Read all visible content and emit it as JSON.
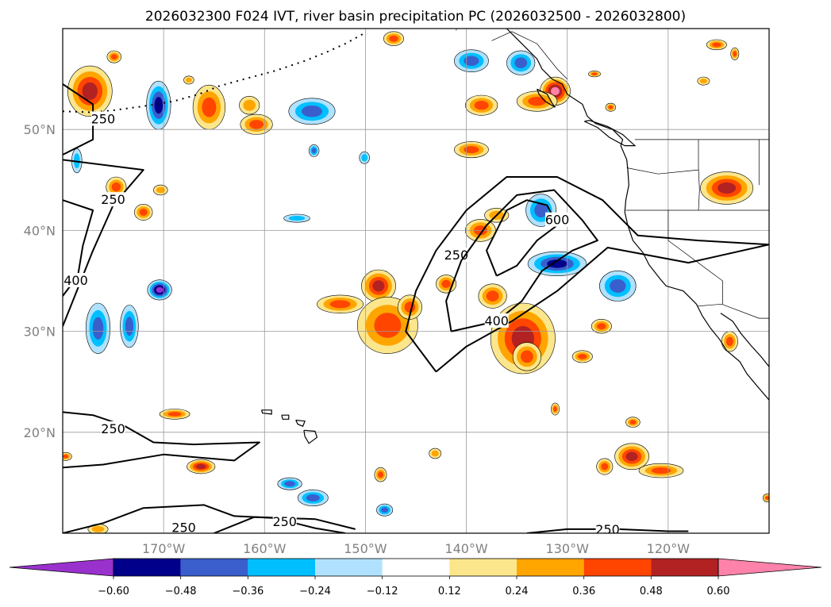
{
  "chart_data": {
    "type": "map-contour",
    "title": "2026032300 F024 IVT, river basin precipitation PC (2026032500 - 2026032800)",
    "extent": {
      "lon_min": -180,
      "lon_max": -110,
      "lat_min": 10,
      "lat_max": 60
    },
    "lon_ticks": [
      {
        "lon": -170,
        "label": "170°W"
      },
      {
        "lon": -160,
        "label": "160°W"
      },
      {
        "lon": -150,
        "label": "150°W"
      },
      {
        "lon": -140,
        "label": "140°W"
      },
      {
        "lon": -130,
        "label": "130°W"
      },
      {
        "lon": -120,
        "label": "120°W"
      }
    ],
    "lat_ticks": [
      {
        "lat": 50,
        "label": "50°N"
      },
      {
        "lat": 40,
        "label": "40°N"
      },
      {
        "lat": 30,
        "label": "30°N"
      },
      {
        "lat": 20,
        "label": "20°N"
      }
    ],
    "gridlines": true,
    "colorbar": {
      "extend": "both",
      "levels": [
        -0.6,
        -0.48,
        -0.36,
        -0.24,
        -0.12,
        0.12,
        0.24,
        0.36,
        0.48,
        0.6
      ],
      "tick_labels": [
        "−0.60",
        "−0.48",
        "−0.36",
        "−0.24",
        "−0.12",
        "0.12",
        "0.24",
        "0.36",
        "0.48",
        "0.60"
      ],
      "colors": [
        "#9932cc",
        "#00008b",
        "#3a5fcd",
        "#00bfff",
        "#b0e2ff",
        "#ffffff",
        "#fce68c",
        "#ffa500",
        "#ff4500",
        "#b22222",
        "#ff82ab"
      ]
    },
    "ivt_contour_levels": [
      250,
      400,
      600
    ],
    "ivt_contours": [
      {
        "level": 250,
        "label": "250",
        "label_lon": -176,
        "label_lat": 51,
        "points": [
          [
            -180,
            54.5
          ],
          [
            -177,
            52.5
          ],
          [
            -177,
            49
          ],
          [
            -180,
            47.5
          ]
        ]
      },
      {
        "level": 250,
        "label": "250",
        "label_lon": -175,
        "label_lat": 43,
        "points": [
          [
            -180,
            30.5
          ],
          [
            -177,
            38
          ],
          [
            -175,
            42.5
          ],
          [
            -172,
            46
          ],
          [
            -180,
            47
          ]
        ]
      },
      {
        "level": 400,
        "label": "400",
        "label_lon": -178.7,
        "label_lat": 35,
        "points": [
          [
            -180,
            33.5
          ],
          [
            -178.5,
            35.5
          ],
          [
            -178,
            38.5
          ],
          [
            -177,
            42
          ],
          [
            -180,
            43
          ]
        ]
      },
      {
        "level": 250,
        "label": "250",
        "label_lon": -141,
        "label_lat": 37.5,
        "points": [
          [
            -143,
            26
          ],
          [
            -146,
            30
          ],
          [
            -145,
            34
          ],
          [
            -143,
            38
          ],
          [
            -140,
            42
          ],
          [
            -136,
            45.3
          ],
          [
            -131,
            45.3
          ],
          [
            -126.5,
            43
          ],
          [
            -123,
            39.5
          ],
          [
            -117,
            39
          ],
          [
            -110,
            38.6
          ],
          [
            -118,
            36.8
          ],
          [
            -126,
            38.3
          ],
          [
            -131,
            34
          ],
          [
            -135.5,
            31
          ],
          [
            -140,
            28.5
          ],
          [
            -143,
            26
          ]
        ]
      },
      {
        "level": 400,
        "label": "400",
        "label_lon": -137,
        "label_lat": 31,
        "points": [
          [
            -141.5,
            30
          ],
          [
            -142,
            33
          ],
          [
            -140.5,
            37
          ],
          [
            -138,
            40.5
          ],
          [
            -135,
            43.5
          ],
          [
            -131.3,
            44
          ],
          [
            -128.5,
            41
          ],
          [
            -127,
            39
          ],
          [
            -129.5,
            38
          ],
          [
            -132.5,
            36
          ],
          [
            -134.5,
            33
          ],
          [
            -137,
            31
          ],
          [
            -141.5,
            30
          ]
        ]
      },
      {
        "level": 600,
        "label": "600",
        "label_lon": -131,
        "label_lat": 41,
        "points": [
          [
            -137,
            35.5
          ],
          [
            -138,
            38
          ],
          [
            -136,
            42
          ],
          [
            -134,
            43
          ],
          [
            -132,
            42.5
          ],
          [
            -131,
            40.5
          ],
          [
            -133,
            39
          ],
          [
            -135,
            36.5
          ],
          [
            -137,
            35.5
          ]
        ]
      },
      {
        "level": 250,
        "label": "250",
        "label_lon": -175,
        "label_lat": 20.3,
        "points": [
          [
            -180,
            22
          ],
          [
            -177,
            21.7
          ],
          [
            -174,
            20.7
          ],
          [
            -171,
            19
          ],
          [
            -167,
            18.8
          ],
          [
            -160.5,
            19
          ],
          [
            -163,
            17.2
          ],
          [
            -170,
            17.8
          ],
          [
            -176,
            16.8
          ],
          [
            -180,
            16.5
          ]
        ]
      },
      {
        "level": 250,
        "label": "250",
        "label_lon": -168,
        "label_lat": 10.5,
        "points": [
          [
            -180,
            10
          ],
          [
            -176,
            11
          ],
          [
            -172,
            12.5
          ],
          [
            -166,
            12.8
          ],
          [
            -163,
            11.7
          ],
          [
            -159,
            11.5
          ],
          [
            -155,
            10.5
          ],
          [
            -152,
            10
          ]
        ]
      },
      {
        "level": 250,
        "label": "250",
        "label_lon": -158,
        "label_lat": 11.1,
        "points": [
          [
            -165,
            10
          ],
          [
            -161,
            11.6
          ],
          [
            -155,
            11.4
          ],
          [
            -151,
            10.4
          ]
        ]
      },
      {
        "level": 250,
        "label": "250",
        "label_lon": -126,
        "label_lat": 10.3,
        "points": [
          [
            -134,
            10
          ],
          [
            -130,
            10.4
          ],
          [
            -125,
            10.4
          ],
          [
            -120,
            10.2
          ],
          [
            -118,
            10.2
          ]
        ]
      }
    ],
    "pc_regions": [
      {
        "lon": -177.3,
        "lat": 53.8,
        "rx": 2.2,
        "ry": 2.5,
        "value": 0.5
      },
      {
        "lon": -170.5,
        "lat": 52.4,
        "rx": 1.2,
        "ry": 2.4,
        "value": -0.55
      },
      {
        "lon": -165.5,
        "lat": 52.2,
        "rx": 1.6,
        "ry": 2.2,
        "value": 0.4
      },
      {
        "lon": -161.5,
        "lat": 52.4,
        "rx": 1.0,
        "ry": 0.9,
        "value": 0.34
      },
      {
        "lon": -160.8,
        "lat": 50.5,
        "rx": 1.6,
        "ry": 1.0,
        "value": 0.42
      },
      {
        "lon": -155.3,
        "lat": 51.8,
        "rx": 2.3,
        "ry": 1.3,
        "value": -0.45
      },
      {
        "lon": -147.2,
        "lat": 59.0,
        "rx": 1.0,
        "ry": 0.7,
        "value": 0.38
      },
      {
        "lon": -139.5,
        "lat": 56.8,
        "rx": 1.7,
        "ry": 1.1,
        "value": -0.4
      },
      {
        "lon": -134.6,
        "lat": 56.6,
        "rx": 1.4,
        "ry": 1.2,
        "value": -0.36
      },
      {
        "lon": -131.2,
        "lat": 53.8,
        "rx": 1.5,
        "ry": 1.4,
        "value": 0.62
      },
      {
        "lon": -133.0,
        "lat": 52.8,
        "rx": 2.0,
        "ry": 1.0,
        "value": 0.4
      },
      {
        "lon": -138.5,
        "lat": 52.4,
        "rx": 1.6,
        "ry": 1.0,
        "value": 0.42
      },
      {
        "lon": -139.5,
        "lat": 48.0,
        "rx": 1.7,
        "ry": 0.8,
        "value": 0.42
      },
      {
        "lon": -114.2,
        "lat": 44.2,
        "rx": 2.6,
        "ry": 1.6,
        "value": 0.52
      },
      {
        "lon": -174.7,
        "lat": 44.3,
        "rx": 1.0,
        "ry": 1.0,
        "value": 0.4
      },
      {
        "lon": -172.0,
        "lat": 41.8,
        "rx": 0.9,
        "ry": 0.8,
        "value": 0.38
      },
      {
        "lon": -138.6,
        "lat": 40.0,
        "rx": 1.5,
        "ry": 1.1,
        "value": 0.42
      },
      {
        "lon": -137.0,
        "lat": 41.5,
        "rx": 1.2,
        "ry": 0.7,
        "value": 0.34
      },
      {
        "lon": -148.7,
        "lat": 34.5,
        "rx": 1.7,
        "ry": 1.6,
        "value": 0.48
      },
      {
        "lon": -152.5,
        "lat": 32.7,
        "rx": 2.3,
        "ry": 0.9,
        "value": 0.42
      },
      {
        "lon": -147.8,
        "lat": 30.6,
        "rx": 3.0,
        "ry": 2.8,
        "value": 0.42
      },
      {
        "lon": -145.6,
        "lat": 32.4,
        "rx": 1.2,
        "ry": 1.2,
        "value": 0.4
      },
      {
        "lon": -142.0,
        "lat": 34.7,
        "rx": 1.0,
        "ry": 0.9,
        "value": 0.36
      },
      {
        "lon": -134.4,
        "lat": 29.3,
        "rx": 3.2,
        "ry": 3.5,
        "value": 0.56
      },
      {
        "lon": -134.0,
        "lat": 27.5,
        "rx": 1.4,
        "ry": 1.4,
        "value": 0.44
      },
      {
        "lon": -137.4,
        "lat": 33.5,
        "rx": 1.4,
        "ry": 1.2,
        "value": 0.4
      },
      {
        "lon": -128.5,
        "lat": 27.5,
        "rx": 1.0,
        "ry": 0.6,
        "value": 0.36
      },
      {
        "lon": -126.6,
        "lat": 30.5,
        "rx": 1.0,
        "ry": 0.7,
        "value": 0.36
      },
      {
        "lon": -132.6,
        "lat": 42.0,
        "rx": 1.5,
        "ry": 1.6,
        "value": -0.46
      },
      {
        "lon": -131.0,
        "lat": 36.7,
        "rx": 2.9,
        "ry": 1.2,
        "value": -0.55
      },
      {
        "lon": -125.0,
        "lat": 34.5,
        "rx": 1.8,
        "ry": 1.5,
        "value": -0.44
      },
      {
        "lon": -170.4,
        "lat": 34.1,
        "rx": 1.2,
        "ry": 1.0,
        "value": -0.6
      },
      {
        "lon": -176.5,
        "lat": 30.3,
        "rx": 1.2,
        "ry": 2.5,
        "value": -0.45
      },
      {
        "lon": -173.4,
        "lat": 30.5,
        "rx": 0.9,
        "ry": 2.1,
        "value": -0.38
      },
      {
        "lon": -156.8,
        "lat": 41.2,
        "rx": 1.3,
        "ry": 0.4,
        "value": -0.3
      },
      {
        "lon": -168.9,
        "lat": 21.8,
        "rx": 1.5,
        "ry": 0.5,
        "value": 0.42
      },
      {
        "lon": -166.3,
        "lat": 16.6,
        "rx": 1.4,
        "ry": 0.7,
        "value": 0.5
      },
      {
        "lon": -157.5,
        "lat": 14.9,
        "rx": 1.2,
        "ry": 0.6,
        "value": -0.42
      },
      {
        "lon": -155.2,
        "lat": 13.5,
        "rx": 1.5,
        "ry": 0.8,
        "value": -0.4
      },
      {
        "lon": -148.5,
        "lat": 15.8,
        "rx": 0.6,
        "ry": 0.7,
        "value": 0.4
      },
      {
        "lon": -148.1,
        "lat": 12.3,
        "rx": 0.8,
        "ry": 0.6,
        "value": -0.38
      },
      {
        "lon": -143.1,
        "lat": 17.9,
        "rx": 0.6,
        "ry": 0.5,
        "value": 0.3
      },
      {
        "lon": -131.2,
        "lat": 22.3,
        "rx": 0.4,
        "ry": 0.6,
        "value": 0.38
      },
      {
        "lon": -123.6,
        "lat": 17.6,
        "rx": 1.7,
        "ry": 1.3,
        "value": 0.5
      },
      {
        "lon": -120.7,
        "lat": 16.2,
        "rx": 2.2,
        "ry": 0.7,
        "value": 0.42
      },
      {
        "lon": -126.3,
        "lat": 16.6,
        "rx": 0.8,
        "ry": 0.8,
        "value": 0.38
      },
      {
        "lon": -123.5,
        "lat": 21.0,
        "rx": 0.7,
        "ry": 0.5,
        "value": 0.36
      },
      {
        "lon": -113.9,
        "lat": 29.0,
        "rx": 0.8,
        "ry": 1.0,
        "value": 0.44
      },
      {
        "lon": -110.2,
        "lat": 13.5,
        "rx": 0.4,
        "ry": 0.4,
        "value": 0.4
      },
      {
        "lon": -179.7,
        "lat": 17.6,
        "rx": 0.6,
        "ry": 0.4,
        "value": 0.42
      },
      {
        "lon": -178.6,
        "lat": 46.9,
        "rx": 0.5,
        "ry": 1.2,
        "value": -0.26
      },
      {
        "lon": -170.3,
        "lat": 44.0,
        "rx": 0.7,
        "ry": 0.5,
        "value": 0.34
      },
      {
        "lon": -176.5,
        "lat": 10.4,
        "rx": 1.0,
        "ry": 0.5,
        "value": 0.3
      },
      {
        "lon": -155.1,
        "lat": 47.9,
        "rx": 0.5,
        "ry": 0.6,
        "value": -0.38
      },
      {
        "lon": -150.1,
        "lat": 47.2,
        "rx": 0.5,
        "ry": 0.6,
        "value": -0.28
      },
      {
        "lon": -174.9,
        "lat": 57.2,
        "rx": 0.7,
        "ry": 0.6,
        "value": 0.4
      },
      {
        "lon": -167.5,
        "lat": 54.9,
        "rx": 0.5,
        "ry": 0.4,
        "value": 0.34
      },
      {
        "lon": -127.3,
        "lat": 55.5,
        "rx": 0.6,
        "ry": 0.3,
        "value": 0.4
      },
      {
        "lon": -115.2,
        "lat": 58.4,
        "rx": 1.0,
        "ry": 0.5,
        "value": 0.36
      },
      {
        "lon": -113.4,
        "lat": 57.5,
        "rx": 0.4,
        "ry": 0.6,
        "value": 0.36
      },
      {
        "lon": -125.7,
        "lat": 52.2,
        "rx": 0.5,
        "ry": 0.4,
        "value": 0.36
      },
      {
        "lon": -116.5,
        "lat": 54.8,
        "rx": 0.6,
        "ry": 0.4,
        "value": 0.34
      }
    ]
  }
}
